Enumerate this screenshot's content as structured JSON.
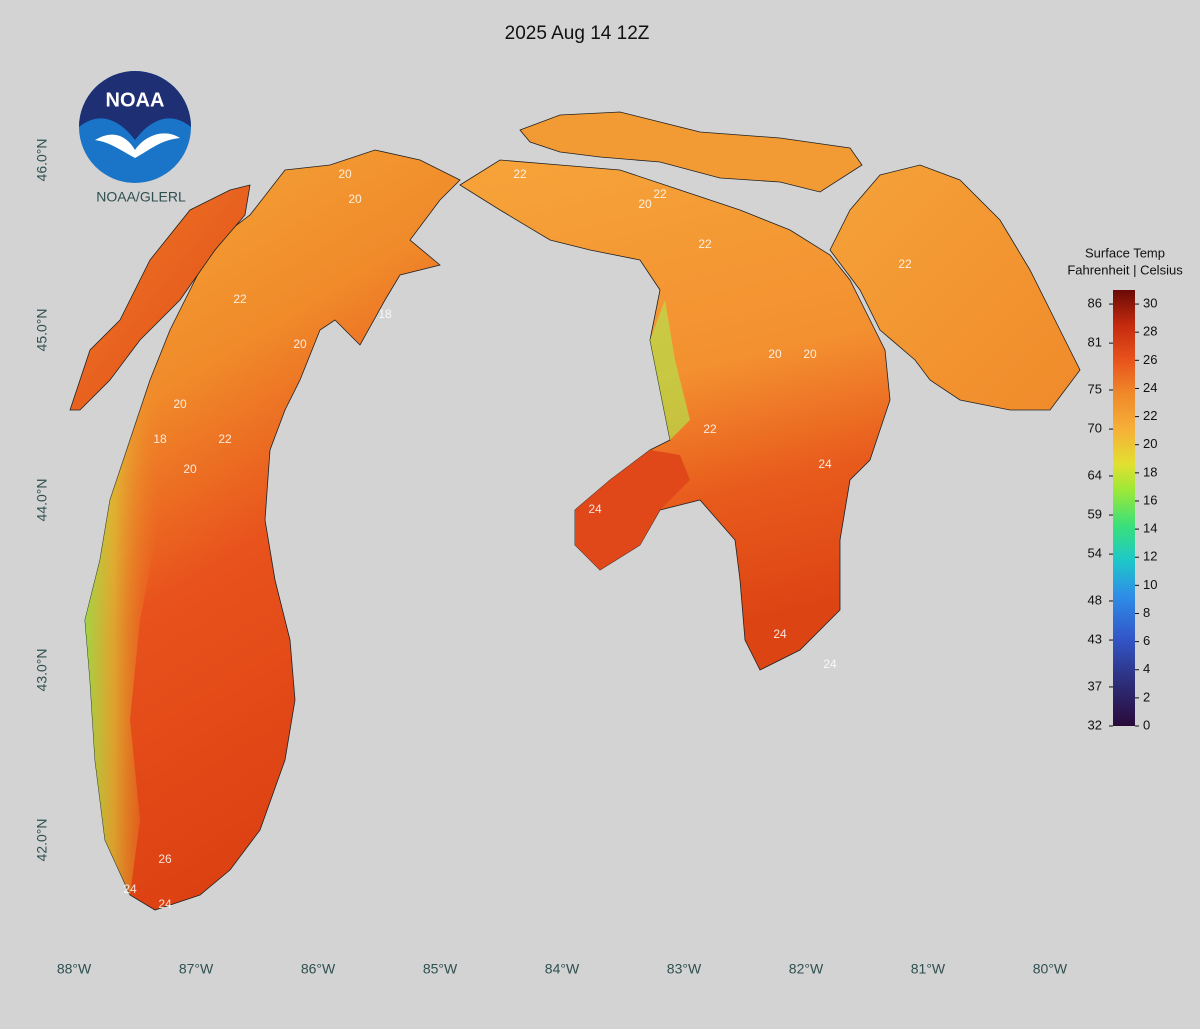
{
  "header": {
    "title": "2025 Aug 14 12Z"
  },
  "logo": {
    "mark": "NOAA",
    "caption": "NOAA/GLERL"
  },
  "map": {
    "xlim": [
      -88.607,
      -78.77
    ],
    "ylim": [
      40.888,
      46.941
    ],
    "xticks": [
      {
        "value": -88,
        "label": "88°W"
      },
      {
        "value": -87,
        "label": "87°W"
      },
      {
        "value": -86,
        "label": "86°W"
      },
      {
        "value": -85,
        "label": "85°W"
      },
      {
        "value": -84,
        "label": "84°W"
      },
      {
        "value": -83,
        "label": "83°W"
      },
      {
        "value": -82,
        "label": "82°W"
      },
      {
        "value": -81,
        "label": "81°W"
      },
      {
        "value": -80,
        "label": "80°W"
      }
    ],
    "yticks": [
      {
        "value": 42,
        "label": "42.0°N"
      },
      {
        "value": 43,
        "label": "43.0°N"
      },
      {
        "value": 44,
        "label": "44.0°N"
      },
      {
        "value": 45,
        "label": "45.0°N"
      },
      {
        "value": 46,
        "label": "46.0°N"
      }
    ],
    "contour_labels": [
      20,
      20,
      22,
      20,
      18,
      22,
      20,
      20,
      18,
      22,
      24,
      26,
      24,
      22,
      22,
      20,
      22,
      20,
      24,
      24,
      24,
      22,
      20,
      24
    ]
  },
  "colorbar": {
    "title": [
      "Surface Temp",
      "Fahrenheit | Celsius"
    ],
    "clim": [
      0,
      31
    ],
    "celsius_ticks": [
      0,
      2,
      4,
      6,
      8,
      10,
      12,
      14,
      16,
      18,
      20,
      22,
      24,
      26,
      28,
      30
    ],
    "fahrenheit_ticks": [
      32,
      37,
      43,
      48,
      54,
      59,
      64,
      70,
      75,
      81,
      86
    ]
  }
}
